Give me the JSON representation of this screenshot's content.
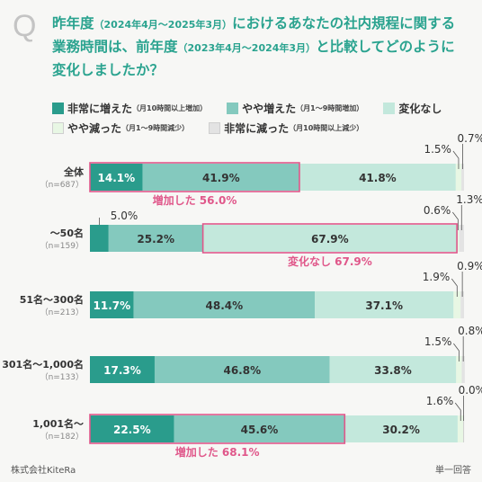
{
  "header": {
    "q_mark": "Q",
    "title_line1_a": "昨年度",
    "title_line1_b": "（2024年4月〜2025年3月）",
    "title_line1_c": "におけるあなたの社内規程に関する",
    "title_line2_a": "業務時間は、前年度",
    "title_line2_b": "（2023年4月〜2024年3月）",
    "title_line2_c": "と比較してどのように",
    "title_line3": "変化しましたか？"
  },
  "legend": [
    {
      "label": "非常に増えた",
      "sub": "（月10時間以上増加）",
      "color": "#2a9c8c"
    },
    {
      "label": "やや増えた",
      "sub": "（月1〜9時間増加）",
      "color": "#84c9be"
    },
    {
      "label": "変化なし",
      "sub": "",
      "color": "#c3e8dc"
    },
    {
      "label": "やや減った",
      "sub": "（月1〜9時間減少）",
      "color": "#e8f7e4"
    },
    {
      "label": "非常に減った",
      "sub": "（月10時間以上減少）",
      "color": "#e3e3e3"
    }
  ],
  "footer": {
    "source": "株式会社KiteRa",
    "note": "単一回答"
  },
  "chart_data": {
    "type": "bar",
    "orientation": "horizontal",
    "stacked": true,
    "categories": [
      {
        "label": "全体",
        "n": "（n=687）"
      },
      {
        "label": "〜50名",
        "n": "（n=159）"
      },
      {
        "label": "51名〜300名",
        "n": "（n=213）"
      },
      {
        "label": "301名〜1,000名",
        "n": "（n=133）"
      },
      {
        "label": "1,001名〜",
        "n": "（n=182）"
      }
    ],
    "series": [
      {
        "name": "非常に増えた",
        "values": [
          14.1,
          5.0,
          11.7,
          17.3,
          22.5
        ],
        "labels": [
          "14.1%",
          "5.0%",
          "11.7%",
          "17.3%",
          "22.5%"
        ]
      },
      {
        "name": "やや増えた",
        "values": [
          41.9,
          25.2,
          48.4,
          46.8,
          45.6
        ],
        "labels": [
          "41.9%",
          "25.2%",
          "48.4%",
          "46.8%",
          "45.6%"
        ]
      },
      {
        "name": "変化なし",
        "values": [
          41.8,
          67.9,
          37.1,
          33.8,
          30.2
        ],
        "labels": [
          "41.8%",
          "67.9%",
          "37.1%",
          "33.8%",
          "30.2%"
        ]
      },
      {
        "name": "やや減った",
        "values": [
          1.5,
          0.6,
          1.9,
          1.5,
          1.6
        ],
        "labels": [
          "1.5%",
          "0.6%",
          "1.9%",
          "1.5%",
          "1.6%"
        ]
      },
      {
        "name": "非常に減った",
        "values": [
          0.7,
          1.3,
          0.9,
          0.8,
          0.0
        ],
        "labels": [
          "0.7%",
          "1.3%",
          "0.9%",
          "0.8%",
          "0.0%"
        ]
      }
    ],
    "xlim": [
      0,
      100
    ],
    "highlights": [
      {
        "row": 0,
        "from_series": 0,
        "to_series": 1,
        "label": "増加した 56.0%"
      },
      {
        "row": 1,
        "from_series": 2,
        "to_series": 2,
        "label": "変化なし 67.9%"
      },
      {
        "row": 4,
        "from_series": 0,
        "to_series": 1,
        "label": "増加した 68.1%"
      }
    ],
    "highlight_color": "#e0578a"
  }
}
